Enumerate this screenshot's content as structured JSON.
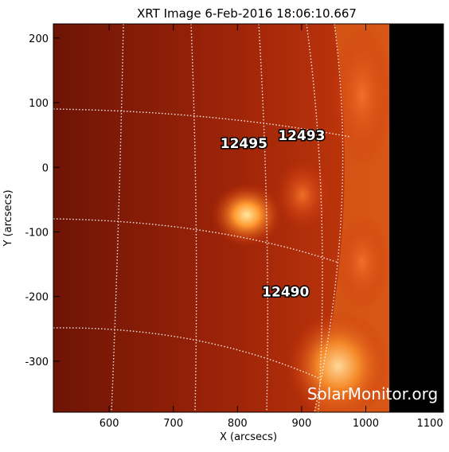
{
  "chart_data": {
    "type": "image",
    "title": "XRT Image   6-Feb-2016 18:06:10.667",
    "xlabel": "X (arcsecs)",
    "ylabel": "Y (arcsecs)",
    "xlim": [
      513,
      1121
    ],
    "ylim": [
      -379,
      222
    ],
    "xticks": [
      600,
      700,
      800,
      900,
      1000,
      1100
    ],
    "yticks": [
      200,
      100,
      0,
      -100,
      -200,
      -300
    ],
    "annotations": [
      {
        "text": "12495",
        "x": 810,
        "y": 30
      },
      {
        "text": "12493",
        "x": 900,
        "y": 42
      },
      {
        "text": "12490",
        "x": 875,
        "y": -200
      }
    ],
    "watermark": "SolarMonitor.org"
  }
}
